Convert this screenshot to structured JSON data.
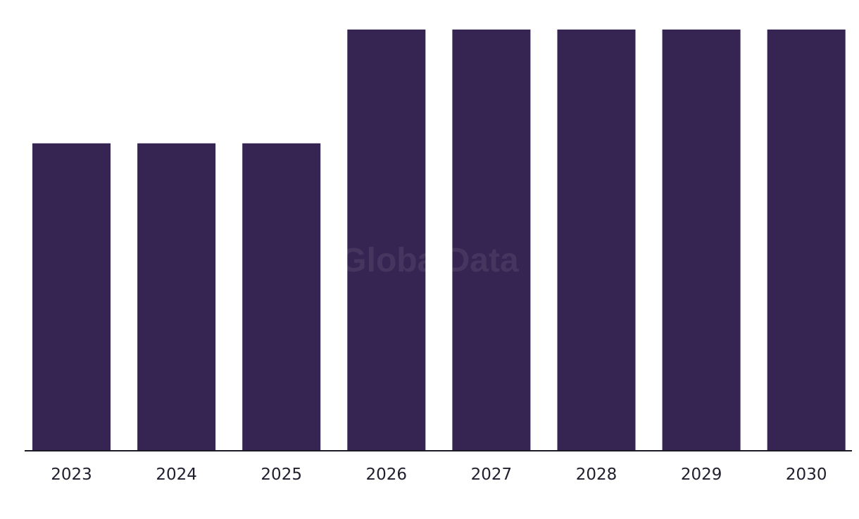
{
  "watermark": "GlobalData",
  "colors": {
    "bar": "#362452",
    "axis": "#1a1a24",
    "background": "#ffffff"
  },
  "chart_data": {
    "type": "bar",
    "categories": [
      "2023",
      "2024",
      "2025",
      "2026",
      "2027",
      "2028",
      "2029",
      "2030"
    ],
    "values": [
      1,
      1,
      1,
      1.37,
      1.37,
      1.37,
      1.37,
      1.37
    ],
    "title": "",
    "xlabel": "",
    "ylabel": "",
    "ylim": [
      0,
      1.37
    ],
    "grid": false,
    "legend": "none"
  }
}
